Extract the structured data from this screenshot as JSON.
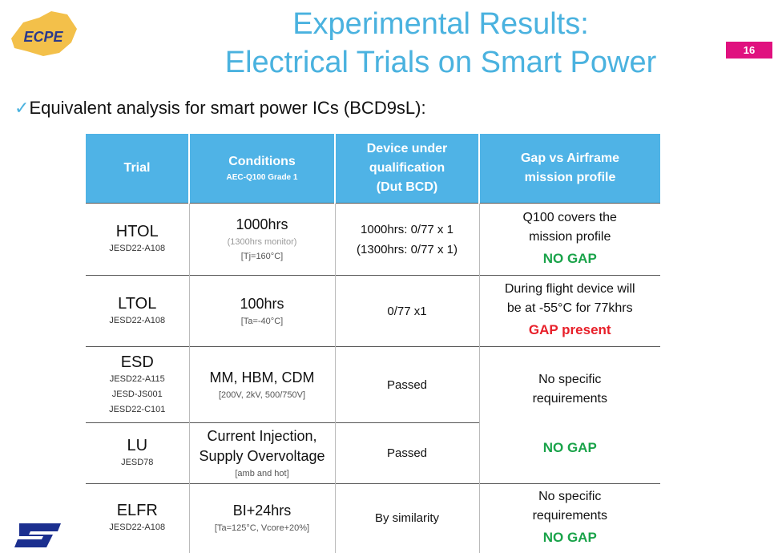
{
  "header": {
    "logo": "ECPE",
    "title_line1": "Experimental Results:",
    "title_line2": "Electrical Trials on Smart Power",
    "page_number": "16"
  },
  "bullet": "Equivalent analysis for smart power ICs (BCD9sL):",
  "table": {
    "columns": [
      [
        "Trial"
      ],
      [
        "Conditions",
        "AEC-Q100 Grade 1"
      ],
      [
        "Device under",
        "qualification",
        "(Dut BCD)"
      ],
      [
        "Gap vs Airframe",
        "mission profile"
      ]
    ],
    "rows": [
      {
        "trial": {
          "name": "HTOL",
          "standards": [
            "JESD22-A108"
          ]
        },
        "conditions": {
          "main": [
            "1000hrs"
          ],
          "notes": [
            "(1300hrs monitor)",
            "[Tj=160°C]"
          ]
        },
        "device": [
          "1000hrs: 0/77 x 1",
          "(1300hrs: 0/77 x 1)"
        ],
        "gap": {
          "lines": [
            "Q100 covers the",
            "mission profile"
          ],
          "verdict": "NO GAP",
          "verdict_color": "#1aa34a"
        }
      },
      {
        "trial": {
          "name": "LTOL",
          "standards": [
            "JESD22-A108"
          ]
        },
        "conditions": {
          "main": [
            "100hrs"
          ],
          "notes": [
            "[Ta=-40°C]"
          ]
        },
        "device": [
          "0/77 x1"
        ],
        "gap": {
          "lines": [
            "During flight device will",
            "be at -55°C for 77khrs"
          ],
          "verdict": "GAP present",
          "verdict_color": "#e8202a"
        }
      },
      {
        "trial": {
          "name": "ESD",
          "standards": [
            "JESD22-A115",
            "JESD-JS001",
            "JESD22-C101"
          ]
        },
        "conditions": {
          "main": [
            "MM, HBM, CDM"
          ],
          "notes": [
            "[200V, 2kV, 500/750V]"
          ]
        },
        "device": [
          "Passed"
        ],
        "gap": {
          "lines": [
            "No specific",
            "requirements"
          ],
          "verdict": "NO GAP",
          "verdict_color": "#1aa34a",
          "rowspan": 2
        }
      },
      {
        "trial": {
          "name": "LU",
          "standards": [
            "JESD78"
          ]
        },
        "conditions": {
          "main": [
            "Current Injection,",
            "Supply Overvoltage"
          ],
          "notes": [
            "[amb and hot]"
          ]
        },
        "device": [
          "Passed"
        ]
      },
      {
        "trial": {
          "name": "ELFR",
          "standards": [
            "JESD22-A108"
          ]
        },
        "conditions": {
          "main": [
            "BI+24hrs"
          ],
          "notes": [
            "[Ta=125°C, Vcore+20%]"
          ]
        },
        "device": [
          "By similarity"
        ],
        "gap": {
          "lines": [
            "No specific",
            "requirements"
          ],
          "verdict": "NO GAP",
          "verdict_color": "#1aa34a"
        }
      }
    ]
  }
}
